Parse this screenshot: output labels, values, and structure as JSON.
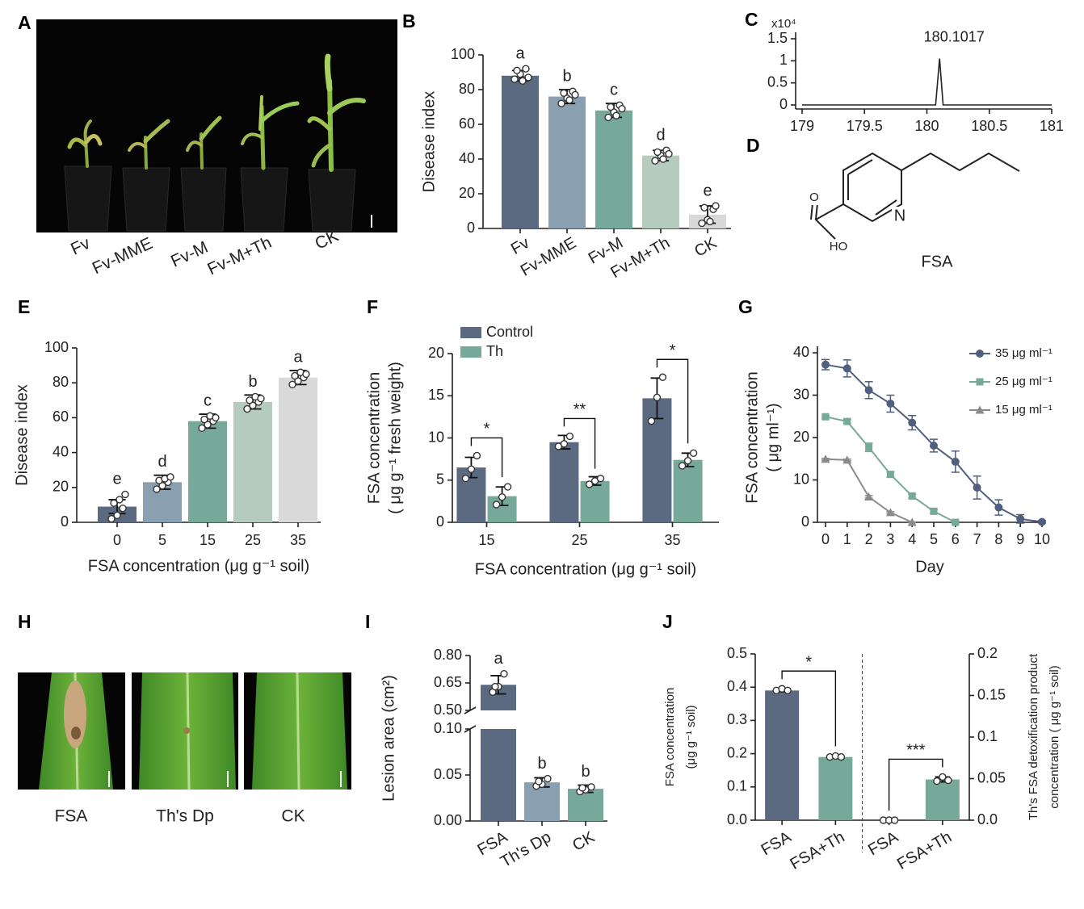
{
  "photo_plants": {
    "panel": "A",
    "labels": [
      "Fv",
      "Fv-MME",
      "Fv-M",
      "Fv-M+Th",
      "CK"
    ]
  },
  "structure": {
    "panel": "D",
    "atoms": [
      "O",
      "HO",
      "N"
    ],
    "name": "FSA"
  },
  "photo_leaves": {
    "panel": "H",
    "labels": [
      "FSA",
      "Th's Dp",
      "CK"
    ]
  },
  "chart_data": [
    {
      "panel": "B",
      "type": "bar",
      "ylabel": "Disease index",
      "categories": [
        "Fv",
        "Fv-MME",
        "Fv-M",
        "Fv-M+Th",
        "CK"
      ],
      "values": [
        88,
        76,
        68,
        42,
        8
      ],
      "errors": [
        3,
        4,
        4,
        3,
        5
      ],
      "points": [
        [
          86,
          89,
          92,
          91,
          85,
          87
        ],
        [
          72,
          75,
          79,
          78,
          74,
          77
        ],
        [
          64,
          67,
          71,
          70,
          65,
          69
        ],
        [
          39,
          42,
          45,
          44,
          40,
          43
        ],
        [
          3,
          5,
          11,
          12,
          4,
          13
        ]
      ],
      "letters": [
        "a",
        "b",
        "c",
        "d",
        "e"
      ],
      "colors": [
        "#5b6a80",
        "#8a9fb0",
        "#77a99b",
        "#b5cbbd",
        "#d8d8d8"
      ],
      "ylim": [
        0,
        100
      ],
      "yticks": [
        0,
        20,
        40,
        60,
        80,
        100
      ]
    },
    {
      "panel": "C",
      "type": "line",
      "scale_label": "x10⁴",
      "annotation": "180.1017",
      "x": [
        179,
        180.07,
        180.1017,
        180.13,
        181
      ],
      "series": [
        {
          "color": "#222222",
          "values": [
            0,
            0,
            1.05,
            0,
            0
          ]
        }
      ],
      "xlim": [
        179,
        181
      ],
      "xticks": [
        179,
        179.5,
        180,
        180.5,
        181
      ],
      "ylim": [
        0,
        1.5
      ],
      "yticks": [
        0,
        0.5,
        1,
        1.5
      ]
    },
    {
      "panel": "E",
      "type": "bar",
      "ylabel": "Disease index",
      "xlabel": "FSA concentration (μg g⁻¹ soil)",
      "categories": [
        "0",
        "5",
        "15",
        "25",
        "35"
      ],
      "values": [
        9,
        23,
        58,
        69,
        83
      ],
      "errors": [
        4,
        4,
        4,
        4,
        4
      ],
      "points": [
        [
          2,
          4,
          8,
          11,
          13,
          16
        ],
        [
          19,
          21,
          23,
          24,
          25,
          26
        ],
        [
          54,
          56,
          58,
          59,
          61,
          60
        ],
        [
          65,
          67,
          69,
          70,
          72,
          71
        ],
        [
          79,
          81,
          83,
          84,
          86,
          85
        ]
      ],
      "letters": [
        "e",
        "d",
        "c",
        "b",
        "a"
      ],
      "colors": [
        "#5b6a80",
        "#8a9fb0",
        "#77a99b",
        "#b5cbbd",
        "#d9d9d9"
      ],
      "ylim": [
        0,
        100
      ],
      "yticks": [
        0,
        20,
        40,
        60,
        80,
        100
      ]
    },
    {
      "panel": "F",
      "type": "bar",
      "ylabel": [
        "FSA concentration",
        "( μg g⁻¹ fresh weight)"
      ],
      "xlabel": "FSA concentration (μg g⁻¹ soil)",
      "categories": [
        "15",
        "25",
        "35"
      ],
      "series": [
        {
          "name": "Control",
          "color": "#5b6a80",
          "values": [
            6.5,
            9.5,
            14.7
          ],
          "errors": [
            1.2,
            0.8,
            2.4
          ],
          "points": [
            [
              5.2,
              6.3,
              7.9
            ],
            [
              9,
              9.3,
              10.2
            ],
            [
              12,
              14.8,
              17.2
            ]
          ]
        },
        {
          "name": "Th",
          "color": "#77a99b",
          "values": [
            3.1,
            4.9,
            7.4
          ],
          "errors": [
            1.1,
            0.5,
            0.8
          ],
          "points": [
            [
              2.1,
              3,
              4.2
            ],
            [
              4.5,
              4.9,
              5.2
            ],
            [
              6.7,
              7.3,
              8.2
            ]
          ]
        }
      ],
      "significance": [
        "*",
        "**",
        "*"
      ],
      "legend": "upper left",
      "ylim": [
        0,
        20
      ],
      "yticks": [
        0,
        5,
        10,
        15,
        20
      ]
    },
    {
      "panel": "G",
      "type": "line",
      "ylabel": [
        "FSA concentration",
        "( μg ml⁻¹)"
      ],
      "xlabel": "Day",
      "x": [
        0,
        1,
        2,
        3,
        4,
        5,
        6,
        7,
        8,
        9,
        10
      ],
      "series": [
        {
          "name": "35 μg ml⁻¹",
          "color": "#4f5f7d",
          "marker": "circle",
          "values": [
            37.2,
            36.3,
            31.2,
            28,
            23.5,
            18.1,
            14.3,
            8.2,
            3.5,
            0.8,
            0.1
          ],
          "errors": [
            1.2,
            2,
            2,
            2,
            1.7,
            1.5,
            2.5,
            2.7,
            1.8,
            1,
            0.3
          ]
        },
        {
          "name": "25 μg ml⁻¹",
          "color": "#77a99b",
          "marker": "square",
          "values": [
            24.9,
            23.8,
            17.7,
            11.3,
            6.2,
            2.6,
            0,
            null,
            null,
            null,
            null
          ],
          "errors": [
            0.3,
            0.5,
            1,
            0.6,
            0.5,
            0.4,
            0.2,
            null,
            null,
            null,
            null
          ]
        },
        {
          "name": "15 μg ml⁻¹",
          "color": "#8a8a8a",
          "marker": "triangle",
          "values": [
            14.9,
            14.7,
            6,
            2.3,
            0,
            null,
            null,
            null,
            null,
            null,
            null
          ],
          "errors": [
            0.2,
            0.2,
            0.3,
            0.2,
            0.1,
            null,
            null,
            null,
            null,
            null,
            null
          ]
        }
      ],
      "legend": "upper right",
      "xlim": [
        0,
        10
      ],
      "xticks": [
        0,
        1,
        2,
        3,
        4,
        5,
        6,
        7,
        8,
        9,
        10
      ],
      "ylim": [
        0,
        40
      ],
      "yticks": [
        0,
        10,
        20,
        30,
        40
      ]
    },
    {
      "panel": "I",
      "type": "bar",
      "ylabel": "Lesion area (cm²)",
      "categories": [
        "FSA",
        "Th's Dp",
        "CK"
      ],
      "values": [
        0.64,
        0.042,
        0.035
      ],
      "errors": [
        0.05,
        0.005,
        0.004
      ],
      "points": [
        [
          0.6,
          0.63,
          0.7,
          0.63
        ],
        [
          0.038,
          0.04,
          0.046,
          0.043
        ],
        [
          0.032,
          0.034,
          0.037,
          0.036
        ]
      ],
      "letters": [
        "a",
        "b",
        "b"
      ],
      "colors": [
        "#5b6a80",
        "#8a9fb0",
        "#77a99b"
      ],
      "ylim": [
        0,
        0.8
      ],
      "axis_break": [
        0.1,
        0.5
      ],
      "yticks": [
        {
          "value": 0,
          "label": "0.00"
        },
        0.05,
        {
          "value": 0.1,
          "label": "0.10"
        },
        {
          "value": 0.5,
          "label": "0.50"
        },
        0.65,
        {
          "value": 0.8,
          "label": "0.80"
        }
      ]
    },
    {
      "panel": "J",
      "type": "bar",
      "ylabel": [
        "FSA concentration",
        "(μg g⁻¹ soil)"
      ],
      "y2label": [
        "Th's FSA detoxification product",
        "concentration ( μg g⁻¹ soil)"
      ],
      "categories": [
        "FSA",
        "FSA+Th",
        "FSA",
        "FSA+Th"
      ],
      "colors": [
        "#5b6a80",
        "#77a99b",
        "#5b6a80",
        "#77a99b"
      ],
      "series": [
        {
          "values": [
            0.39,
            0.19,
            null,
            null
          ],
          "errors": [
            0.004,
            0.003,
            null,
            null
          ],
          "points": [
            [
              0.39,
              0.395,
              0.39
            ],
            [
              0.19,
              0.193,
              0.19
            ],
            null,
            null
          ]
        },
        {
          "axis": "y2",
          "values": [
            null,
            null,
            0,
            0.049
          ],
          "errors": [
            null,
            null,
            0,
            0.003
          ],
          "points": [
            null,
            null,
            [
              0,
              0,
              0
            ],
            [
              0.047,
              0.052,
              0.048
            ]
          ]
        }
      ],
      "significance": [
        "*",
        "***"
      ],
      "ylim": [
        0,
        0.5
      ],
      "yticks": [
        {
          "value": 0,
          "label": "0.0"
        },
        0.1,
        0.2,
        0.3,
        0.4,
        0.5
      ],
      "y2lim": [
        0,
        0.2
      ],
      "y2ticks": [
        {
          "value": 0,
          "label": "0.0"
        },
        0.05,
        0.1,
        0.15,
        0.2
      ]
    }
  ]
}
